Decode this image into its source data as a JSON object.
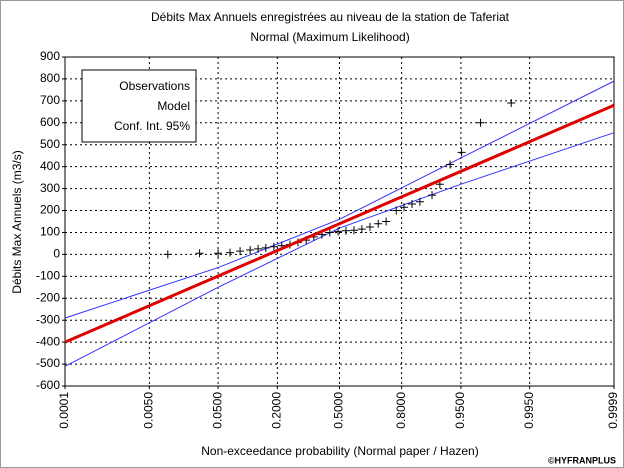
{
  "chart_data": {
    "type": "probability",
    "title": "Débits Max Annuels enregistrées au niveau de la station de Taferiat",
    "subtitle": "Normal (Maximum Likelihood)",
    "x_label": "Non-exceedance probability (Normal paper / Hazen)",
    "y_label": "Débits Max Annuels (m3/s)",
    "credit": "©HYFRANPLUS",
    "xscale": "normal",
    "xlim": [
      0.0001,
      0.9999
    ],
    "xticks": [
      0.0001,
      {
        "value": 0.005,
        "label": "0.0050"
      },
      {
        "value": 0.05,
        "label": "0.0500"
      },
      {
        "value": 0.2,
        "label": "0.2000"
      },
      {
        "value": 0.5,
        "label": "0.5000"
      },
      {
        "value": 0.8,
        "label": "0.8000"
      },
      {
        "value": 0.95,
        "label": "0.9500"
      },
      {
        "value": 0.995,
        "label": "0.9950"
      },
      0.9999
    ],
    "ylim": [
      -600,
      900
    ],
    "yticks": [
      -600,
      -500,
      -400,
      -300,
      -200,
      -100,
      0,
      100,
      200,
      300,
      400,
      500,
      600,
      700,
      800,
      900
    ],
    "grid": true,
    "legend": "top-left",
    "series": [
      {
        "name": "Observations",
        "style": "markers",
        "color": "#000000",
        "x": [
          0.01,
          0.029,
          0.05,
          0.069,
          0.089,
          0.113,
          0.135,
          0.159,
          0.187,
          0.217,
          0.251,
          0.287,
          0.326,
          0.364,
          0.406,
          0.448,
          0.492,
          0.535,
          0.578,
          0.619,
          0.66,
          0.7,
          0.736,
          0.779,
          0.809,
          0.837,
          0.862,
          0.895,
          0.913,
          0.933,
          0.951,
          0.972,
          0.99
        ],
        "y": [
          0,
          5,
          5,
          8,
          15,
          20,
          25,
          30,
          35,
          40,
          45,
          55,
          65,
          80,
          90,
          100,
          105,
          108,
          110,
          115,
          125,
          140,
          150,
          200,
          215,
          230,
          240,
          270,
          320,
          410,
          465,
          600,
          690
        ]
      },
      {
        "name": "Model",
        "style": "line",
        "color": "#e00000",
        "x": [
          0.0001,
          0.9999
        ],
        "y": [
          -400,
          680
        ]
      },
      {
        "name": "Conf. Int. 95%",
        "style": "band",
        "color": "#3333ff",
        "x": [
          0.0001,
          0.05,
          0.5,
          0.95,
          0.9999
        ],
        "lower": [
          -510,
          -150,
          120,
          320,
          555
        ],
        "upper": [
          -290,
          -60,
          160,
          440,
          790
        ]
      }
    ]
  }
}
